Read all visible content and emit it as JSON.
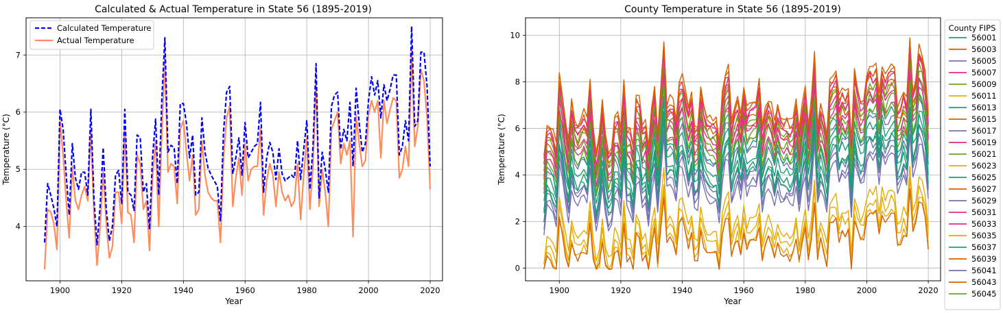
{
  "chart_data": [
    {
      "type": "line",
      "title": "Calculated & Actual Temperature in State 56 (1895-2019)",
      "xlabel": "Year",
      "ylabel": "Temperature (°C)",
      "xlim": [
        1889,
        2024
      ],
      "ylim": [
        3.05,
        7.65
      ],
      "xticks": [
        1900,
        1920,
        1940,
        1960,
        1980,
        2000,
        2020
      ],
      "yticks": [
        4,
        5,
        6,
        7
      ],
      "grid": true,
      "legend_position": "top-left",
      "series": [
        {
          "name": "Calculated Temperature",
          "color": "#0000ff",
          "style": "dashed",
          "x_start": 1895,
          "values": [
            3.72,
            4.75,
            4.55,
            4.32,
            4.0,
            6.05,
            5.7,
            4.9,
            4.2,
            5.45,
            4.85,
            4.65,
            4.95,
            4.95,
            4.55,
            6.05,
            4.5,
            3.68,
            4.35,
            5.38,
            4.3,
            3.75,
            4.0,
            4.9,
            4.98,
            4.4,
            6.05,
            4.6,
            4.55,
            4.28,
            5.6,
            5.55,
            4.6,
            4.75,
            3.95,
            5.2,
            5.88,
            4.55,
            6.2,
            7.3,
            5.3,
            5.42,
            5.38,
            4.75,
            6.15,
            6.15,
            5.8,
            5.2,
            5.6,
            4.55,
            4.6,
            5.9,
            5.3,
            5.02,
            4.9,
            4.8,
            4.7,
            4.1,
            5.65,
            6.35,
            6.45,
            4.92,
            5.2,
            5.55,
            4.9,
            5.82,
            5.2,
            5.3,
            5.4,
            5.45,
            6.17,
            4.6,
            5.2,
            5.47,
            5.3,
            4.82,
            5.36,
            4.92,
            4.8,
            4.85,
            4.9,
            4.85,
            5.5,
            4.82,
            5.35,
            5.85,
            4.65,
            5.4,
            6.85,
            4.5,
            5.3,
            5.0,
            4.6,
            6.1,
            6.3,
            6.35,
            5.35,
            5.7,
            5.5,
            6.17,
            5.05,
            6.42,
            5.8,
            5.3,
            5.45,
            6.2,
            6.62,
            6.3,
            6.55,
            5.9,
            6.48,
            6.2,
            6.4,
            6.65,
            6.65,
            5.25,
            5.4,
            5.85,
            5.5,
            7.5,
            5.75,
            5.85,
            7.05,
            7.05,
            6.45,
            5.05
          ],
          "x_end": 2019
        },
        {
          "name": "Actual Temperature",
          "color": "#ff8c5a",
          "style": "solid",
          "x_start": 1895,
          "x_end": 2019,
          "values": [
            3.25,
            4.3,
            4.25,
            4.05,
            3.6,
            5.85,
            5.25,
            4.45,
            3.8,
            5.05,
            4.45,
            4.3,
            4.55,
            4.7,
            4.45,
            5.7,
            4.25,
            3.32,
            3.98,
            4.95,
            4.05,
            3.45,
            3.65,
            4.6,
            4.6,
            4.05,
            5.72,
            4.25,
            4.2,
            3.72,
            5.25,
            5.1,
            4.3,
            4.45,
            3.58,
            4.85,
            5.5,
            4.0,
            5.6,
            6.95,
            4.95,
            5.1,
            5.05,
            4.4,
            5.7,
            5.85,
            5.3,
            4.8,
            5.25,
            4.2,
            4.3,
            5.5,
            4.9,
            4.6,
            4.5,
            4.45,
            4.45,
            3.72,
            5.2,
            5.9,
            6.1,
            4.35,
            4.85,
            5.2,
            4.55,
            5.45,
            4.8,
            5.0,
            5.05,
            5.05,
            5.72,
            4.2,
            4.8,
            5.1,
            4.9,
            4.35,
            4.95,
            4.6,
            4.45,
            4.55,
            4.35,
            4.45,
            5.1,
            4.12,
            4.9,
            5.55,
            4.3,
            5.05,
            6.55,
            4.35,
            5.0,
            4.6,
            4.0,
            5.7,
            5.85,
            6.0,
            5.1,
            5.45,
            5.25,
            5.5,
            3.82,
            5.95,
            5.45,
            5.05,
            5.15,
            5.95,
            6.2,
            6.0,
            6.2,
            5.2,
            6.2,
            5.8,
            6.05,
            6.25,
            6.2,
            4.85,
            5.0,
            5.4,
            5.05,
            7.1,
            5.4,
            5.75,
            6.75,
            6.55,
            5.9,
            4.65
          ]
        }
      ]
    },
    {
      "type": "line",
      "title": "County Temperature in State 56 (1895-2019)",
      "xlabel": "Year",
      "ylabel": "Temperature (°C)",
      "xlim": [
        1889,
        2024
      ],
      "ylim": [
        -0.55,
        10.75
      ],
      "xticks": [
        1900,
        1920,
        1940,
        1960,
        1980,
        2000,
        2020
      ],
      "yticks": [
        0,
        2,
        4,
        6,
        8,
        10
      ],
      "grid": true,
      "legend_title": "County FIPS",
      "legend_position": "outside-right",
      "x_start": 1895,
      "x_end": 2019,
      "series": [
        {
          "name": "56001",
          "color": "#1b9e77",
          "base": 4.3
        },
        {
          "name": "56003",
          "color": "#d95f02",
          "base": 6.2
        },
        {
          "name": "56005",
          "color": "#7570b3",
          "base": 5.0
        },
        {
          "name": "56007",
          "color": "#e7298a",
          "base": 6.8
        },
        {
          "name": "56009",
          "color": "#66a61e",
          "base": 5.8
        },
        {
          "name": "56011",
          "color": "#e6ab02",
          "base": 2.0
        },
        {
          "name": "56013",
          "color": "#1b9e77",
          "base": 4.7
        },
        {
          "name": "56015",
          "color": "#d95f02",
          "base": 6.5
        },
        {
          "name": "56017",
          "color": "#7570b3",
          "base": 4.0
        },
        {
          "name": "56019",
          "color": "#e7298a",
          "base": 6.0
        },
        {
          "name": "56021",
          "color": "#66a61e",
          "base": 6.3
        },
        {
          "name": "56023",
          "color": "#e6ab02",
          "base": 1.6
        },
        {
          "name": "56025",
          "color": "#1b9e77",
          "base": 5.2
        },
        {
          "name": "56027",
          "color": "#d95f02",
          "base": 6.9
        },
        {
          "name": "56029",
          "color": "#7570b3",
          "base": 3.7
        },
        {
          "name": "56031",
          "color": "#e7298a",
          "base": 6.6
        },
        {
          "name": "56033",
          "color": "#e7298a",
          "base": 5.6
        },
        {
          "name": "56035",
          "color": "#e6ab02",
          "base": 1.2
        },
        {
          "name": "56037",
          "color": "#1b9e77",
          "base": 4.1
        },
        {
          "name": "56039",
          "color": "#d95f02",
          "base": 1.1
        },
        {
          "name": "56041",
          "color": "#7570b3",
          "base": 3.4
        },
        {
          "name": "56043",
          "color": "#d95f02",
          "base": 7.1
        },
        {
          "name": "56045",
          "color": "#66a61e",
          "base": 5.4
        }
      ]
    }
  ]
}
